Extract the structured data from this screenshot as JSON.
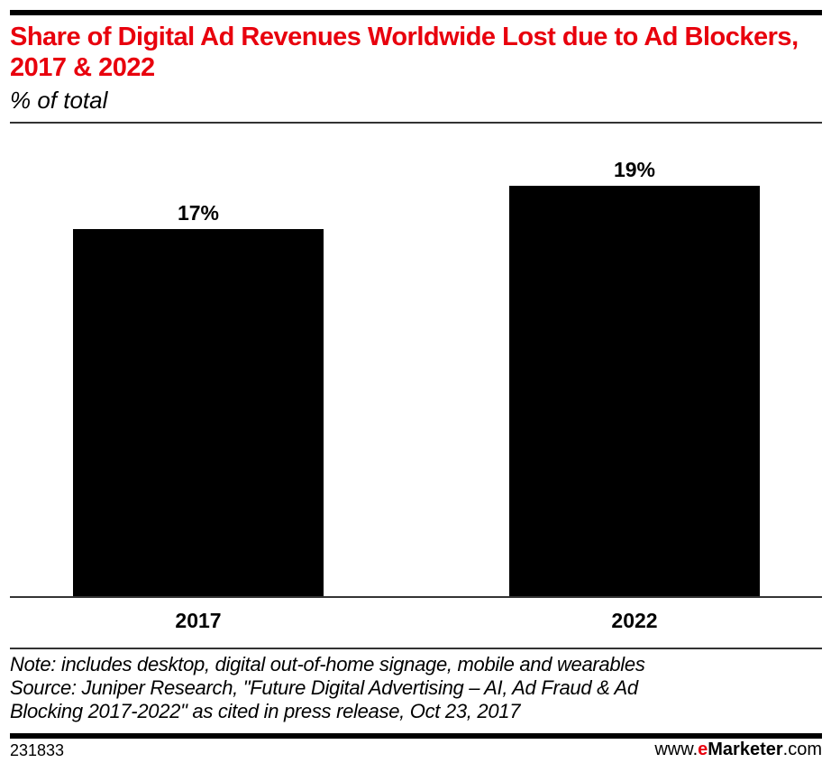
{
  "header": {
    "title": "Share of Digital Ad Revenues Worldwide Lost due to Ad Blockers, 2017 & 2022",
    "subtitle": "% of total"
  },
  "chart_data": {
    "type": "bar",
    "title": "Share of Digital Ad Revenues Worldwide Lost due to Ad Blockers, 2017 & 2022",
    "subtitle": "% of total",
    "categories": [
      "2017",
      "2022"
    ],
    "values": [
      17,
      19
    ],
    "data_labels": [
      "17%",
      "19%"
    ],
    "xlabel": "",
    "ylabel": "% of total",
    "ylim": [
      0,
      21
    ],
    "grid": false,
    "legend": "none",
    "bar_color": "#000000"
  },
  "footer": {
    "note": "Note: includes desktop, digital out-of-home signage, mobile and wearables",
    "source_line1": "Source: Juniper Research, \"Future Digital Advertising – AI, Ad Fraud & Ad",
    "source_line2": "Blocking 2017-2022\" as cited in press release, Oct 23, 2017",
    "chart_id": "231833",
    "brand_prefix": "www.",
    "brand_e": "e",
    "brand_name": "Marketer",
    "brand_suffix": ".com"
  },
  "colors": {
    "accent": "#e8000d",
    "bars": "#000000"
  }
}
